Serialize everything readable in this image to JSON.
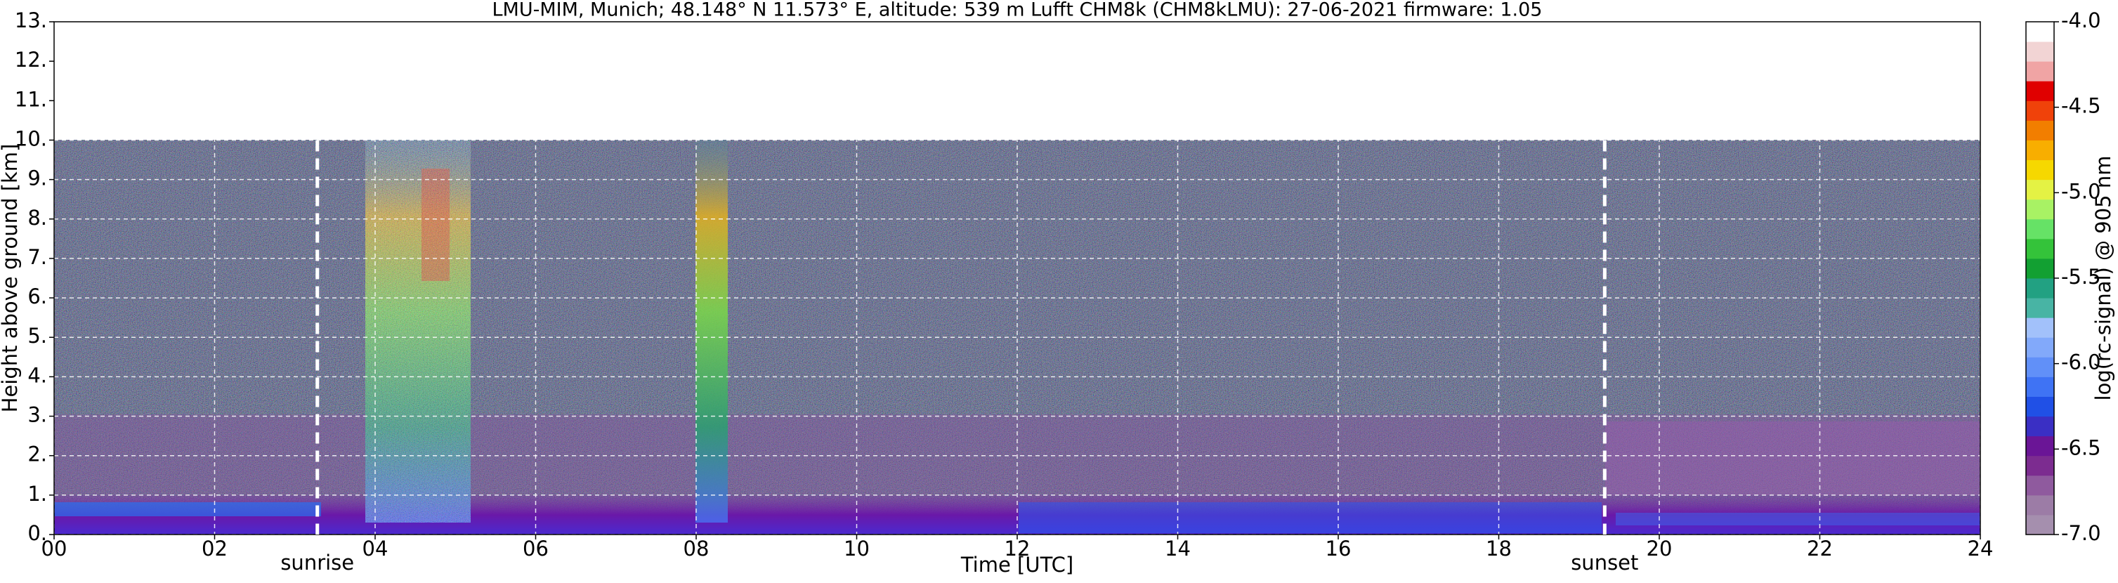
{
  "chart_data": {
    "type": "heatmap",
    "title": "LMU-MIM, Munich; 48.148° N 11.573° E, altitude: 539 m    Lufft CHM8k (CHM8kLMU): 27-06-2021    firmware: 1.05",
    "x_label": "Time [UTC]",
    "y_label": "Height above ground [km]",
    "xlim": [
      0,
      24
    ],
    "xticks": [
      {
        "value": 0,
        "label": "00"
      },
      {
        "value": 2,
        "label": "02"
      },
      {
        "value": 4,
        "label": "04"
      },
      {
        "value": 6,
        "label": "06"
      },
      {
        "value": 8,
        "label": "08"
      },
      10,
      12,
      14,
      16,
      18,
      20,
      22,
      24
    ],
    "ylim": [
      0,
      13
    ],
    "yticks": [
      {
        "value": 0,
        "label": "0."
      },
      {
        "value": 1,
        "label": "1."
      },
      {
        "value": 2,
        "label": "2."
      },
      {
        "value": 3,
        "label": "3."
      },
      {
        "value": 4,
        "label": "4."
      },
      {
        "value": 5,
        "label": "5."
      },
      {
        "value": 6,
        "label": "6."
      },
      {
        "value": 7,
        "label": "7."
      },
      {
        "value": 8,
        "label": "8."
      },
      {
        "value": 9,
        "label": "9."
      },
      {
        "value": 10,
        "label": "10."
      },
      {
        "value": 11,
        "label": "11."
      },
      {
        "value": 12,
        "label": "12."
      },
      {
        "value": 13,
        "label": "13."
      }
    ],
    "grid": true,
    "annotations": [
      {
        "text": "sunrise",
        "x": 3.28
      },
      {
        "text": "sunset",
        "x": 19.32
      }
    ],
    "colorbar": {
      "label": "log(rc-signal) @ 905 nm",
      "lim": [
        -7,
        -4
      ],
      "ticks": [
        {
          "value": -7,
          "label": "-7.0"
        },
        {
          "value": -6.5,
          "label": "-6.5"
        },
        {
          "value": -6,
          "label": "-6.0"
        },
        {
          "value": -5.5,
          "label": "-5.5"
        },
        {
          "value": -5,
          "label": "-5.0"
        },
        {
          "value": -4.5,
          "label": "-4.5"
        },
        {
          "value": -4,
          "label": "-4.0"
        }
      ],
      "colors": [
        "#a58fae",
        "#9c7ca6",
        "#8f5a9e",
        "#7c2c90",
        "#6a1596",
        "#3a2fc4",
        "#2050e6",
        "#3f73f4",
        "#6190f8",
        "#82a9fa",
        "#a2c1fa",
        "#48b4a4",
        "#22a182",
        "#12a032",
        "#34c33a",
        "#66e266",
        "#a8f264",
        "#e4f244",
        "#f6d800",
        "#f8ae00",
        "#f27e00",
        "#f0420a",
        "#e00000",
        "#f0a4a4",
        "#f2d4d4",
        "#ffffff"
      ]
    }
  }
}
